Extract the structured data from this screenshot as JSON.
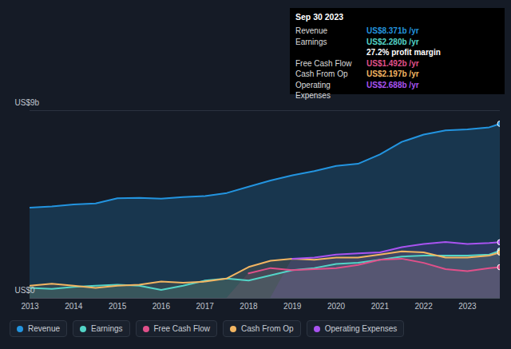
{
  "chart_data": {
    "type": "line",
    "x": [
      2013,
      2013.5,
      2014,
      2014.5,
      2015,
      2015.5,
      2016,
      2016.5,
      2017,
      2017.5,
      2018,
      2018.5,
      2019,
      2019.5,
      2020,
      2020.5,
      2021,
      2021.5,
      2022,
      2022.5,
      2023,
      2023.5,
      2023.75
    ],
    "series": [
      {
        "name": "Revenue",
        "color": "#2394df",
        "values": [
          4.35,
          4.4,
          4.5,
          4.55,
          4.8,
          4.82,
          4.78,
          4.85,
          4.9,
          5.05,
          5.35,
          5.65,
          5.9,
          6.1,
          6.35,
          6.45,
          6.9,
          7.5,
          7.85,
          8.05,
          8.1,
          8.2,
          8.371
        ]
      },
      {
        "name": "Earnings",
        "color": "#53d4c7",
        "values": [
          0.5,
          0.45,
          0.55,
          0.6,
          0.65,
          0.6,
          0.4,
          0.6,
          0.85,
          0.95,
          0.85,
          1.1,
          1.35,
          1.45,
          1.65,
          1.7,
          1.85,
          2.0,
          2.05,
          2.05,
          2.05,
          2.1,
          2.28
        ]
      },
      {
        "name": "Free Cash Flow",
        "color": "#e0508a",
        "values": [
          null,
          null,
          null,
          null,
          null,
          null,
          null,
          null,
          null,
          null,
          1.2,
          1.45,
          1.35,
          1.4,
          1.45,
          1.6,
          1.85,
          1.9,
          1.7,
          1.4,
          1.3,
          1.45,
          1.492
        ]
      },
      {
        "name": "Cash From Op",
        "color": "#f2b562",
        "values": [
          0.6,
          0.7,
          0.6,
          0.5,
          0.6,
          0.65,
          0.8,
          0.75,
          0.8,
          0.95,
          1.5,
          1.8,
          1.9,
          1.85,
          1.95,
          1.95,
          2.1,
          2.25,
          2.2,
          1.95,
          1.95,
          2.05,
          2.197
        ]
      },
      {
        "name": "Operating Expenses",
        "color": "#a853f0",
        "values": [
          null,
          null,
          null,
          null,
          null,
          null,
          null,
          null,
          null,
          null,
          null,
          null,
          1.9,
          1.95,
          2.1,
          2.15,
          2.2,
          2.45,
          2.6,
          2.7,
          2.6,
          2.65,
          2.688
        ]
      }
    ],
    "xlim": [
      2013,
      2023.75
    ],
    "xticks": [
      2013,
      2014,
      2015,
      2016,
      2017,
      2018,
      2019,
      2020,
      2021,
      2022,
      2023
    ],
    "ylim": [
      0,
      9
    ],
    "yticks": [
      {
        "value": 0,
        "label": "US$0"
      },
      {
        "value": 9,
        "label": "US$9b"
      }
    ],
    "grid": true,
    "legend": "bottom",
    "tooltip": {
      "title": "Sep 30 2023",
      "rows": [
        {
          "label": "Revenue",
          "value": "US$8.371b /yr"
        },
        {
          "label": "Earnings",
          "value": "US$2.280b /yr"
        },
        {
          "label": "Free Cash Flow",
          "value": "US$1.492b /yr"
        },
        {
          "label": "Cash From Op",
          "value": "US$2.197b /yr"
        },
        {
          "label": "Operating Expenses",
          "value": "US$2.688b /yr"
        }
      ],
      "note": "27.2% profit margin"
    }
  }
}
